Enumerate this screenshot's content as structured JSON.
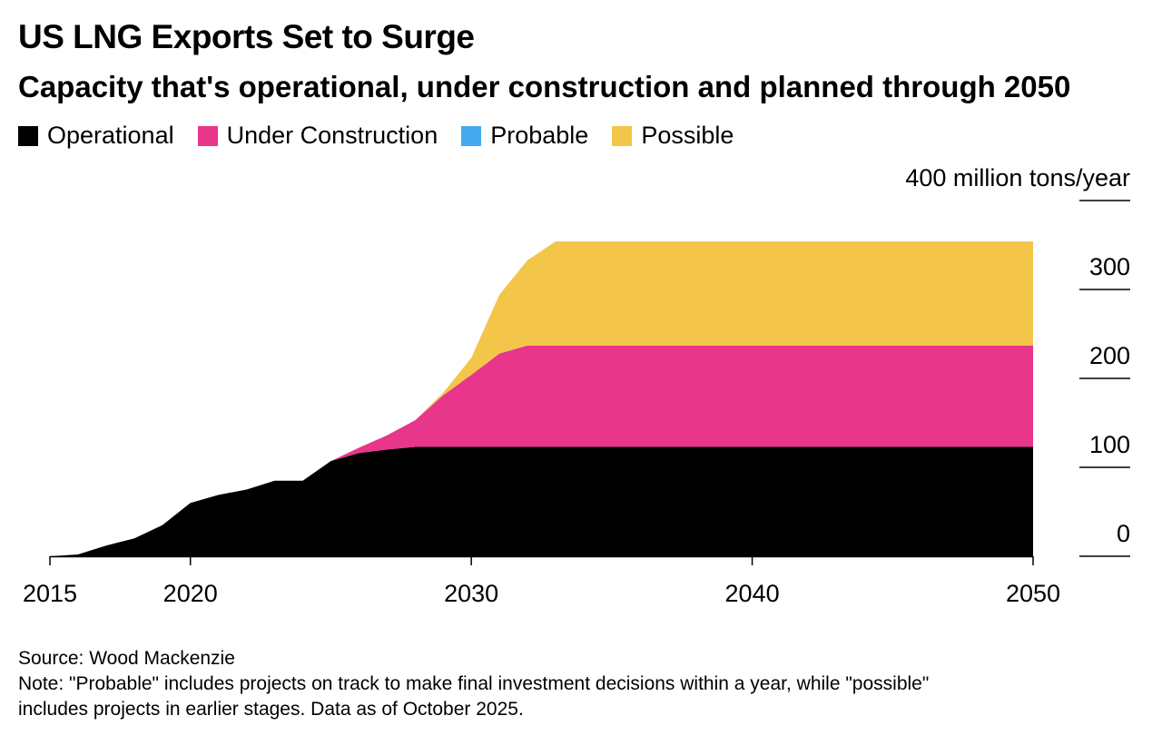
{
  "title": "US LNG Exports Set to Surge",
  "subtitle": "Capacity that's operational, under construction and planned through 2050",
  "source": "Source: Wood Mackenzie",
  "note": "Note: \"Probable\" includes projects on track to make final investment decisions within a year, while \"possible\"",
  "note_cont": "includes projects in earlier stages. Data as of October 2025.",
  "colors": {
    "operational": "#000000",
    "under_construction": "#e8368a",
    "probable": "#45a9f0",
    "possible": "#f3c549"
  },
  "chart_data": {
    "type": "area",
    "stacked": true,
    "x": [
      2015,
      2016,
      2017,
      2018,
      2019,
      2020,
      2021,
      2022,
      2023,
      2024,
      2025,
      2026,
      2027,
      2028,
      2029,
      2030,
      2031,
      2032,
      2033,
      2034,
      2035,
      2036,
      2037,
      2038,
      2039,
      2040,
      2041,
      2042,
      2043,
      2044,
      2045,
      2046,
      2047,
      2048,
      2049,
      2050
    ],
    "series": [
      {
        "key": "operational",
        "name": "Operational",
        "values": [
          0,
          2,
          12,
          20,
          35,
          60,
          69,
          75,
          85,
          85,
          107,
          116,
          120,
          123,
          123,
          123,
          123,
          123,
          123,
          123,
          123,
          123,
          123,
          123,
          123,
          123,
          123,
          123,
          123,
          123,
          123,
          123,
          123,
          123,
          123,
          123
        ]
      },
      {
        "key": "under_construction",
        "name": "Under Construction",
        "values": [
          0,
          0,
          0,
          0,
          0,
          0,
          0,
          0,
          0,
          0,
          0,
          6,
          16,
          30,
          58,
          81,
          105,
          114,
          114,
          114,
          114,
          114,
          114,
          114,
          114,
          114,
          114,
          114,
          114,
          114,
          114,
          114,
          114,
          114,
          114,
          114
        ]
      },
      {
        "key": "probable",
        "name": "Probable",
        "values": [
          0,
          0,
          0,
          0,
          0,
          0,
          0,
          0,
          0,
          0,
          0,
          0,
          0,
          0,
          0,
          0,
          0,
          0,
          0,
          0,
          0,
          0,
          0,
          0,
          0,
          0,
          0,
          0,
          0,
          0,
          0,
          0,
          0,
          0,
          0,
          0
        ]
      },
      {
        "key": "possible",
        "name": "Possible",
        "values": [
          0,
          0,
          0,
          0,
          0,
          0,
          0,
          0,
          0,
          0,
          0,
          0,
          0,
          0,
          3,
          19,
          66,
          96,
          117,
          117,
          117,
          117,
          117,
          117,
          117,
          117,
          117,
          117,
          117,
          117,
          117,
          117,
          117,
          117,
          117,
          117
        ]
      }
    ],
    "xticks": [
      2015,
      2020,
      2030,
      2040,
      2050
    ],
    "ylim": [
      0,
      400
    ],
    "yticks": [
      0,
      100,
      200,
      300,
      400
    ],
    "ytick_labels": [
      "0",
      "100",
      "200",
      "300",
      "400 million tons/year"
    ],
    "y_axis_side": "right",
    "legend_position": "top-left"
  }
}
